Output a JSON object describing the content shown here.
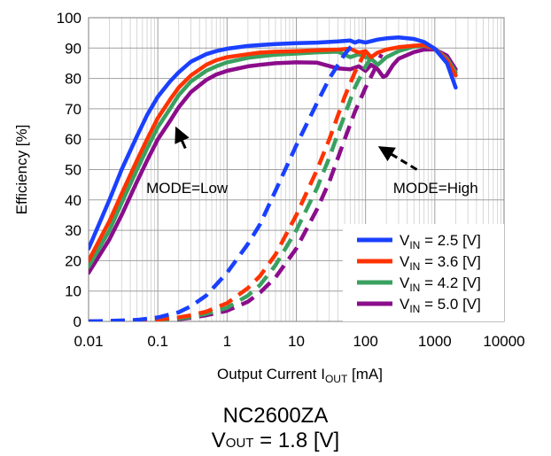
{
  "chart_data": {
    "type": "line",
    "title": "",
    "xlabel": "Output Current I",
    "xlabel_sub": "OUT",
    "xlabel_unit": " [mA]",
    "ylabel": "Efficiency [%]",
    "x_scale": "log",
    "xlim": [
      0.01,
      10000
    ],
    "ylim": [
      0,
      100
    ],
    "x_ticks": [
      {
        "value": 0.01,
        "label": "0.01"
      },
      {
        "value": 0.1,
        "label": "0.1"
      },
      {
        "value": 1,
        "label": "1"
      },
      {
        "value": 10,
        "label": "10"
      },
      {
        "value": 100,
        "label": "100"
      },
      {
        "value": 1000,
        "label": "1000"
      },
      {
        "value": 10000,
        "label": "10000"
      }
    ],
    "y_ticks": [
      {
        "value": 0,
        "label": "0"
      },
      {
        "value": 10,
        "label": "10"
      },
      {
        "value": 20,
        "label": "20"
      },
      {
        "value": 30,
        "label": "30"
      },
      {
        "value": 40,
        "label": "40"
      },
      {
        "value": 50,
        "label": "50"
      },
      {
        "value": 60,
        "label": "60"
      },
      {
        "value": 70,
        "label": "70"
      },
      {
        "value": 80,
        "label": "80"
      },
      {
        "value": 90,
        "label": "90"
      },
      {
        "value": 100,
        "label": "100"
      }
    ],
    "grid": true,
    "legend_position": "bottom-right",
    "series": [
      {
        "name": "V_IN = 2.5 [V]",
        "legend": {
          "prefix": "V",
          "sub": "IN",
          "suffix": " = 2.5 [V]"
        },
        "color": "#1a40ff",
        "low": {
          "x": [
            0.01,
            0.02,
            0.03,
            0.05,
            0.07,
            0.1,
            0.15,
            0.2,
            0.3,
            0.5,
            0.7,
            1,
            2,
            3,
            5,
            10,
            20,
            40,
            60,
            70,
            80,
            100,
            150,
            200,
            300,
            500,
            700,
            1000,
            1500,
            2000
          ],
          "y": [
            24,
            40,
            50,
            61,
            68,
            74,
            79,
            82,
            85.5,
            88,
            89,
            89.8,
            90.7,
            91,
            91.3,
            91.6,
            91.8,
            92.2,
            92.5,
            91.8,
            92.3,
            91.8,
            92.8,
            93.2,
            93.5,
            93,
            92,
            89.8,
            85,
            77
          ]
        },
        "high": {
          "x": [
            0.01,
            0.03,
            0.05,
            0.1,
            0.2,
            0.3,
            0.5,
            1,
            2,
            3,
            5,
            10,
            20,
            30,
            50,
            70
          ],
          "y": [
            0,
            0.3,
            0.5,
            1.3,
            3,
            5,
            8.5,
            16,
            25.5,
            32,
            43,
            58,
            72,
            80,
            88,
            92
          ]
        }
      },
      {
        "name": "V_IN = 3.6 [V]",
        "legend": {
          "prefix": "V",
          "sub": "IN",
          "suffix": " = 3.6 [V]"
        },
        "color": "#ff3300",
        "low": {
          "x": [
            0.01,
            0.02,
            0.03,
            0.05,
            0.07,
            0.1,
            0.15,
            0.2,
            0.3,
            0.5,
            0.7,
            1,
            2,
            3,
            5,
            10,
            20,
            40,
            60,
            80,
            100,
            120,
            150,
            200,
            300,
            500,
            700,
            1000,
            1500,
            2000
          ],
          "y": [
            20,
            33,
            42,
            53,
            60,
            67,
            73,
            77,
            81,
            84.5,
            86,
            87,
            88,
            88.5,
            88.8,
            89,
            89.3,
            89.5,
            89.8,
            88.5,
            89,
            87,
            88.5,
            89.5,
            90.3,
            90.8,
            91,
            89.8,
            86,
            81
          ]
        },
        "high": {
          "x": [
            0.01,
            0.03,
            0.05,
            0.1,
            0.2,
            0.3,
            0.5,
            1,
            2,
            3,
            5,
            10,
            20,
            30,
            50,
            70,
            100
          ],
          "y": [
            0,
            0.2,
            0.3,
            0.6,
            1.3,
            2,
            3.2,
            6,
            11,
            15,
            22,
            35,
            50,
            60,
            74,
            82,
            89
          ]
        }
      },
      {
        "name": "V_IN = 4.2 [V]",
        "legend": {
          "prefix": "V",
          "sub": "IN",
          "suffix": " = 4.2 [V]"
        },
        "color": "#3aa060",
        "low": {
          "x": [
            0.01,
            0.02,
            0.03,
            0.05,
            0.07,
            0.1,
            0.15,
            0.2,
            0.3,
            0.5,
            0.7,
            1,
            2,
            3,
            5,
            10,
            20,
            40,
            60,
            80,
            100,
            120,
            150,
            200,
            300,
            500,
            700,
            1000,
            1500,
            2000
          ],
          "y": [
            18,
            30,
            39,
            50,
            57,
            64,
            70,
            74.5,
            79,
            82.5,
            84,
            85.3,
            86.8,
            87.3,
            87.8,
            88.2,
            88.6,
            88.8,
            87,
            88,
            87,
            86.5,
            84.5,
            87,
            89,
            90.5,
            90.8,
            89.8,
            86.5,
            82
          ]
        },
        "high": {
          "x": [
            0.01,
            0.03,
            0.05,
            0.1,
            0.2,
            0.3,
            0.5,
            1,
            2,
            3,
            5,
            10,
            20,
            30,
            50,
            70,
            100,
            130
          ],
          "y": [
            0,
            0.1,
            0.2,
            0.4,
            0.9,
            1.5,
            2.5,
            4.5,
            8.5,
            12,
            18.5,
            30,
            44,
            54,
            68,
            77,
            84,
            88
          ]
        }
      },
      {
        "name": "V_IN = 5.0 [V]",
        "legend": {
          "prefix": "V",
          "sub": "IN",
          "suffix": " = 5.0 [V]"
        },
        "color": "#8b0d8b",
        "low": {
          "x": [
            0.01,
            0.02,
            0.03,
            0.05,
            0.07,
            0.1,
            0.15,
            0.2,
            0.3,
            0.5,
            0.7,
            1,
            2,
            3,
            5,
            10,
            20,
            40,
            60,
            80,
            100,
            120,
            150,
            180,
            200,
            250,
            300,
            500,
            700,
            1000,
            1500,
            2000
          ],
          "y": [
            16,
            27,
            35,
            46,
            53,
            60,
            66,
            70.5,
            75.5,
            79.5,
            81.3,
            82.5,
            84,
            84.5,
            85,
            85.3,
            85.2,
            83.3,
            83,
            84,
            82.5,
            84.5,
            83,
            80.5,
            81,
            84.5,
            86.5,
            88.7,
            89.5,
            89.6,
            87.5,
            83
          ]
        },
        "high": {
          "x": [
            0.01,
            0.03,
            0.05,
            0.1,
            0.2,
            0.3,
            0.5,
            1,
            2,
            3,
            5,
            10,
            20,
            30,
            50,
            70,
            100,
            150,
            170
          ],
          "y": [
            0,
            0.1,
            0.2,
            0.3,
            0.7,
            1.2,
            2,
            3.5,
            6.5,
            9.5,
            14.5,
            24,
            37,
            46,
            60,
            69,
            77,
            85,
            88
          ]
        }
      }
    ],
    "annotations": [
      {
        "text": "MODE=Low",
        "anchor": {
          "x": 0.068,
          "y": 44
        },
        "arrow_from": {
          "x": 0.25,
          "y": 57
        },
        "arrow_to": {
          "x": 0.19,
          "y": 63
        },
        "arrow_style": "solid"
      },
      {
        "text": "MODE=High",
        "anchor": {
          "x": 250,
          "y": 44
        },
        "arrow_from": {
          "x": 550,
          "y": 50
        },
        "arrow_to": {
          "x": 170,
          "y": 57
        },
        "arrow_style": "dashed"
      }
    ]
  },
  "caption": {
    "line1": "NC2600ZA",
    "line2_prefix": "V",
    "line2_sub": "OUT",
    "line2_suffix": " = 1.8 [V]"
  }
}
